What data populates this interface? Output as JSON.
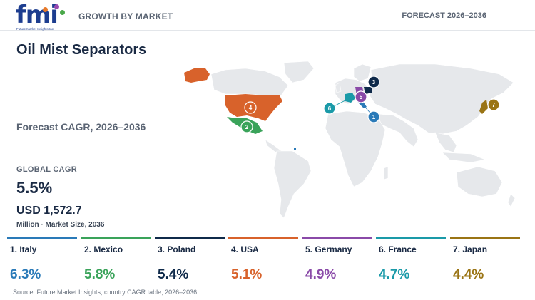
{
  "header": {
    "logo_text": "fmi",
    "logo_sub": "Future Market Insights Inc.",
    "section_label": "GROWTH BY MARKET",
    "forecast_label": "FORECAST 2026–2036"
  },
  "summary": {
    "title": "Oil Mist Separators",
    "subtitle": "Forecast CAGR, 2026–2036",
    "global_cagr_label": "GLOBAL CAGR",
    "global_cagr_value": "5.5%",
    "market_size_value": "USD 1,572.7",
    "market_size_label": "Million · Market Size, 2036"
  },
  "countries": [
    {
      "rank": "1",
      "name": "1. Italy",
      "cagr": "6.3%",
      "color": "#2a7ab8"
    },
    {
      "rank": "2",
      "name": "2. Mexico",
      "cagr": "5.8%",
      "color": "#3aa35a"
    },
    {
      "rank": "3",
      "name": "3. Poland",
      "cagr": "5.4%",
      "color": "#0f2a4a"
    },
    {
      "rank": "4",
      "name": "4. USA",
      "cagr": "5.1%",
      "color": "#d8622b"
    },
    {
      "rank": "5",
      "name": "5. Germany",
      "cagr": "4.9%",
      "color": "#8a4aa8"
    },
    {
      "rank": "6",
      "name": "6. France",
      "cagr": "4.7%",
      "color": "#1a9aa8"
    },
    {
      "rank": "7",
      "name": "7. Japan",
      "cagr": "4.4%",
      "color": "#9a7414"
    }
  ],
  "source": "Source: Future Market Insights; country CAGR table, 2026–2036.",
  "colors": {
    "land": "#e6e8eb",
    "accent_navy": "#1a2a44"
  }
}
